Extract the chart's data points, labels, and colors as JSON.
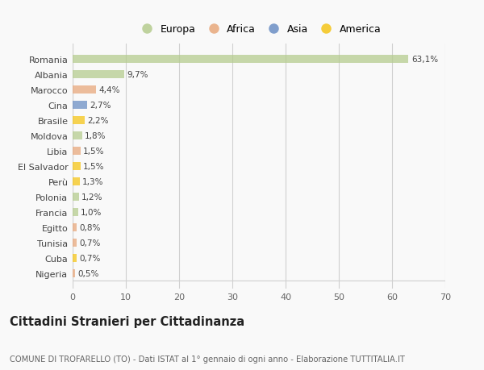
{
  "categories": [
    "Romania",
    "Albania",
    "Marocco",
    "Cina",
    "Brasile",
    "Moldova",
    "Libia",
    "El Salvador",
    "Perù",
    "Polonia",
    "Francia",
    "Egitto",
    "Tunisia",
    "Cuba",
    "Nigeria"
  ],
  "values": [
    63.1,
    9.7,
    4.4,
    2.7,
    2.2,
    1.8,
    1.5,
    1.5,
    1.3,
    1.2,
    1.0,
    0.8,
    0.7,
    0.7,
    0.5
  ],
  "labels": [
    "63,1%",
    "9,7%",
    "4,4%",
    "2,7%",
    "2,2%",
    "1,8%",
    "1,5%",
    "1,5%",
    "1,3%",
    "1,2%",
    "1,0%",
    "0,8%",
    "0,7%",
    "0,7%",
    "0,5%"
  ],
  "colors": [
    "#b5cc8e",
    "#b5cc8e",
    "#e8a87c",
    "#6b8ec4",
    "#f5c518",
    "#b5cc8e",
    "#e8a87c",
    "#f5c518",
    "#f5c518",
    "#b5cc8e",
    "#b5cc8e",
    "#e8a87c",
    "#e8a87c",
    "#f5c518",
    "#e8a87c"
  ],
  "legend_labels": [
    "Europa",
    "Africa",
    "Asia",
    "America"
  ],
  "legend_colors": [
    "#b5cc8e",
    "#e8a87c",
    "#6b8ec4",
    "#f5c518"
  ],
  "xlim": [
    0,
    70
  ],
  "xticks": [
    0,
    10,
    20,
    30,
    40,
    50,
    60,
    70
  ],
  "title": "Cittadini Stranieri per Cittadinanza",
  "subtitle": "COMUNE DI TROFARELLO (TO) - Dati ISTAT al 1° gennaio di ogni anno - Elaborazione TUTTITALIA.IT",
  "bg_color": "#f9f9f9",
  "grid_color": "#d0d0d0",
  "bar_height": 0.55,
  "bar_alpha": 0.75
}
